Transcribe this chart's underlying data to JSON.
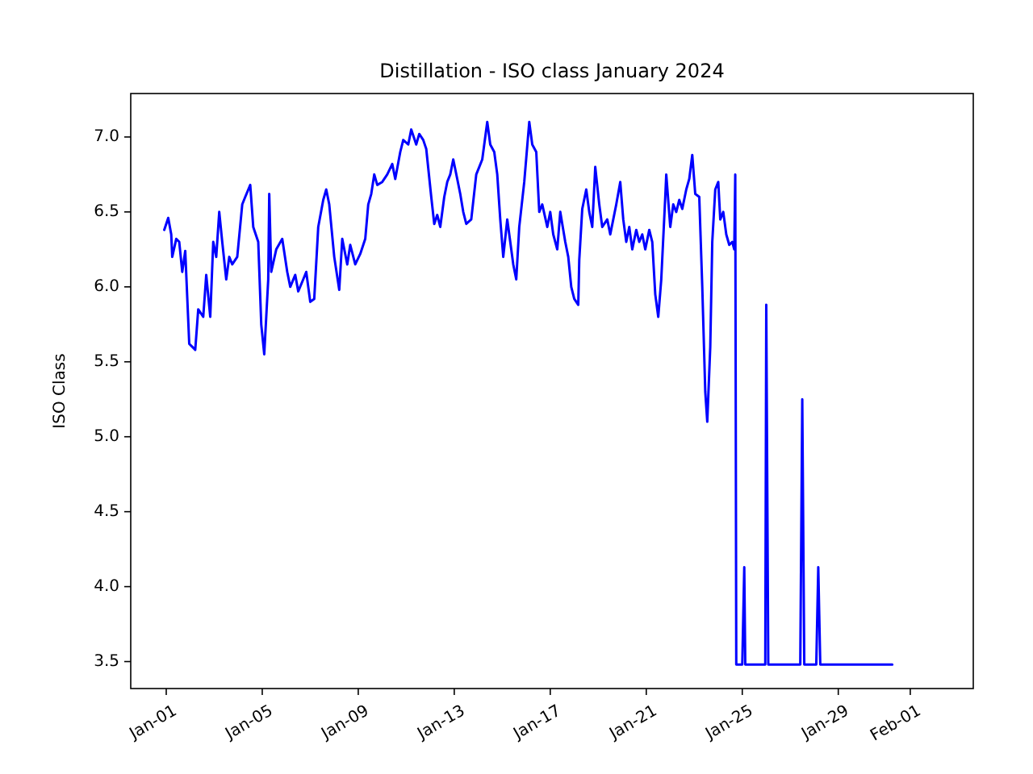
{
  "chart_data": {
    "type": "line",
    "title": "Distillation - ISO class January 2024",
    "ylabel": "ISO Class",
    "xlim": [
      "2023-12-30T12:30",
      "2024-02-03T15:00"
    ],
    "ylim": [
      3.32,
      7.29
    ],
    "xticks": [
      {
        "value": "2024-01-01",
        "label": "Jan-01"
      },
      {
        "value": "2024-01-05",
        "label": "Jan-05"
      },
      {
        "value": "2024-01-09",
        "label": "Jan-09"
      },
      {
        "value": "2024-01-13",
        "label": "Jan-13"
      },
      {
        "value": "2024-01-17",
        "label": "Jan-17"
      },
      {
        "value": "2024-01-21",
        "label": "Jan-21"
      },
      {
        "value": "2024-01-25",
        "label": "Jan-25"
      },
      {
        "value": "2024-01-29",
        "label": "Jan-29"
      },
      {
        "value": "2024-02-01",
        "label": "Feb-01"
      }
    ],
    "yticks": [
      3.5,
      {
        "value": 4,
        "label": "4.0"
      },
      4.5,
      {
        "value": 5,
        "label": "5.0"
      },
      5.5,
      {
        "value": 6,
        "label": "6.0"
      },
      6.5,
      {
        "value": 7,
        "label": "7.0"
      }
    ],
    "grid": false,
    "marker": "none",
    "line_style": "solid",
    "x": [
      "2023-12-31T22:00",
      "2024-01-01T02:00",
      "2024-01-01T05:00",
      "2024-01-01T06:00",
      "2024-01-01T10:00",
      "2024-01-01T13:00",
      "2024-01-01T16:00",
      "2024-01-01T19:00",
      "2024-01-01T23:00",
      "2024-01-02T02:00",
      "2024-01-02T05:00",
      "2024-01-02T08:00",
      "2024-01-02T13:00",
      "2024-01-02T16:00",
      "2024-01-02T20:00",
      "2024-01-02T23:00",
      "2024-01-03T02:00",
      "2024-01-03T05:00",
      "2024-01-03T08:00",
      "2024-01-03T12:00",
      "2024-01-03T15:00",
      "2024-01-03T18:00",
      "2024-01-03T23:00",
      "2024-01-04T04:00",
      "2024-01-04T07:00",
      "2024-01-04T12:00",
      "2024-01-04T15:00",
      "2024-01-04T20:00",
      "2024-01-04T23:00",
      "2024-01-05T02:00",
      "2024-01-05T06:00",
      "2024-01-05T07:00",
      "2024-01-05T09:00",
      "2024-01-05T14:00",
      "2024-01-05T20:00",
      "2024-01-06T01:00",
      "2024-01-06T04:00",
      "2024-01-06T09:00",
      "2024-01-06T12:00",
      "2024-01-06T17:00",
      "2024-01-06T20:00",
      "2024-01-07T00:00",
      "2024-01-07T04:00",
      "2024-01-07T08:00",
      "2024-01-07T13:00",
      "2024-01-07T16:00",
      "2024-01-07T19:00",
      "2024-01-08T00:00",
      "2024-01-08T05:00",
      "2024-01-08T08:00",
      "2024-01-08T13:00",
      "2024-01-08T16:00",
      "2024-01-08T21:00",
      "2024-01-09T02:00",
      "2024-01-09T07:00",
      "2024-01-09T10:00",
      "2024-01-09T13:00",
      "2024-01-09T16:00",
      "2024-01-09T19:00",
      "2024-01-10T00:00",
      "2024-01-10T05:00",
      "2024-01-10T10:00",
      "2024-01-10T13:00",
      "2024-01-10T18:00",
      "2024-01-10T21:00",
      "2024-01-11T02:00",
      "2024-01-11T05:00",
      "2024-01-11T10:00",
      "2024-01-11T13:00",
      "2024-01-11T17:00",
      "2024-01-11T20:00",
      "2024-01-12T01:00",
      "2024-01-12T04:00",
      "2024-01-12T07:00",
      "2024-01-12T10:00",
      "2024-01-12T14:00",
      "2024-01-12T17:00",
      "2024-01-12T20:00",
      "2024-01-12T23:00",
      "2024-01-13T03:00",
      "2024-01-13T06:00",
      "2024-01-13T09:00",
      "2024-01-13T12:00",
      "2024-01-13T17:00",
      "2024-01-13T22:00",
      "2024-01-14T01:00",
      "2024-01-14T04:00",
      "2024-01-14T09:00",
      "2024-01-14T12:00",
      "2024-01-14T16:00",
      "2024-01-14T19:00",
      "2024-01-14T22:00",
      "2024-01-15T01:00",
      "2024-01-15T05:00",
      "2024-01-15T08:00",
      "2024-01-15T11:00",
      "2024-01-15T14:00",
      "2024-01-15T17:00",
      "2024-01-15T22:00",
      "2024-01-16T03:00",
      "2024-01-16T06:00",
      "2024-01-16T10:00",
      "2024-01-16T13:00",
      "2024-01-16T16:00",
      "2024-01-16T21:00",
      "2024-01-17T00:00",
      "2024-01-17T03:00",
      "2024-01-17T07:00",
      "2024-01-17T10:00",
      "2024-01-17T15:00",
      "2024-01-17T18:00",
      "2024-01-17T21:00",
      "2024-01-18T00:00",
      "2024-01-18T04:00",
      "2024-01-18T05:00",
      "2024-01-18T08:00",
      "2024-01-18T12:00",
      "2024-01-18T15:00",
      "2024-01-18T18:00",
      "2024-01-18T21:00",
      "2024-01-19T01:00",
      "2024-01-19T04:00",
      "2024-01-19T09:00",
      "2024-01-19T12:00",
      "2024-01-19T15:00",
      "2024-01-19T18:00",
      "2024-01-19T22:00",
      "2024-01-20T01:00",
      "2024-01-20T04:00",
      "2024-01-20T07:00",
      "2024-01-20T10:00",
      "2024-01-20T14:00",
      "2024-01-20T17:00",
      "2024-01-20T20:00",
      "2024-01-20T23:00",
      "2024-01-21T03:00",
      "2024-01-21T06:00",
      "2024-01-21T09:00",
      "2024-01-21T12:00",
      "2024-01-21T15:00",
      "2024-01-21T19:00",
      "2024-01-21T20:00",
      "2024-01-22T00:00",
      "2024-01-22T03:00",
      "2024-01-22T06:00",
      "2024-01-22T09:00",
      "2024-01-22T12:00",
      "2024-01-22T16:00",
      "2024-01-22T19:00",
      "2024-01-22T22:00",
      "2024-01-23T01:00",
      "2024-01-23T05:00",
      "2024-01-23T08:00",
      "2024-01-23T11:00",
      "2024-01-23T13:00",
      "2024-01-23T16:00",
      "2024-01-23T18:00",
      "2024-01-23T21:00",
      "2024-01-24T00:00",
      "2024-01-24T02:00",
      "2024-01-24T05:00",
      "2024-01-24T08:00",
      "2024-01-24T11:00",
      "2024-01-24T14:00",
      "2024-01-24T16:00",
      "2024-01-24T17:00",
      "2024-01-24T18:00",
      "2024-01-25T00:00",
      "2024-01-25T02:00",
      "2024-01-25T03:00",
      "2024-01-25T23:00",
      "2024-01-26T00:00",
      "2024-01-26T02:00",
      "2024-01-27T10:00",
      "2024-01-27T12:00",
      "2024-01-27T14:00",
      "2024-01-28T02:00",
      "2024-01-28T04:00",
      "2024-01-28T06:00",
      "2024-01-31T06:00"
    ],
    "series": [
      {
        "color": "#0000ff",
        "values": [
          6.38,
          6.46,
          6.35,
          6.2,
          6.32,
          6.3,
          6.1,
          6.24,
          5.62,
          5.6,
          5.58,
          5.85,
          5.8,
          6.08,
          5.8,
          6.3,
          6.2,
          6.5,
          6.3,
          6.05,
          6.2,
          6.15,
          6.2,
          6.55,
          6.6,
          6.68,
          6.4,
          6.3,
          5.75,
          5.55,
          6.05,
          6.62,
          6.1,
          6.25,
          6.32,
          6.1,
          6.0,
          6.08,
          5.97,
          6.05,
          6.1,
          5.9,
          5.92,
          6.4,
          6.58,
          6.65,
          6.55,
          6.2,
          5.98,
          6.32,
          6.15,
          6.28,
          6.15,
          6.22,
          6.32,
          6.55,
          6.62,
          6.75,
          6.68,
          6.7,
          6.75,
          6.82,
          6.72,
          6.9,
          6.98,
          6.95,
          7.05,
          6.95,
          7.02,
          6.98,
          6.92,
          6.6,
          6.42,
          6.48,
          6.4,
          6.6,
          6.7,
          6.75,
          6.85,
          6.72,
          6.62,
          6.5,
          6.42,
          6.45,
          6.75,
          6.8,
          6.85,
          7.1,
          6.95,
          6.9,
          6.75,
          6.45,
          6.2,
          6.45,
          6.3,
          6.15,
          6.05,
          6.4,
          6.7,
          7.1,
          6.95,
          6.9,
          6.5,
          6.55,
          6.4,
          6.5,
          6.35,
          6.25,
          6.5,
          6.3,
          6.2,
          6.0,
          5.92,
          5.88,
          6.18,
          6.52,
          6.65,
          6.5,
          6.4,
          6.8,
          6.55,
          6.4,
          6.45,
          6.35,
          6.45,
          6.55,
          6.7,
          6.45,
          6.3,
          6.4,
          6.25,
          6.38,
          6.3,
          6.35,
          6.25,
          6.38,
          6.3,
          5.95,
          5.8,
          6.05,
          6.6,
          6.75,
          6.4,
          6.55,
          6.5,
          6.58,
          6.52,
          6.65,
          6.72,
          6.88,
          6.62,
          6.6,
          6.0,
          5.3,
          5.1,
          5.6,
          6.3,
          6.65,
          6.7,
          6.45,
          6.5,
          6.35,
          6.28,
          6.3,
          6.25,
          6.75,
          3.48,
          3.48,
          4.13,
          3.48,
          3.48,
          5.88,
          3.48,
          3.48,
          5.25,
          3.48,
          3.48,
          4.13,
          3.48,
          3.48
        ]
      }
    ]
  }
}
